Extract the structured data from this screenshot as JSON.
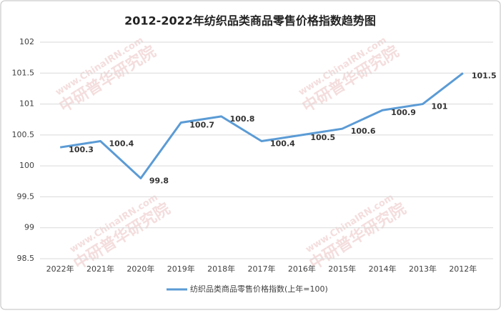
{
  "chart_data": {
    "type": "line",
    "title": "2012-2022年纺织品类商品零售价格指数趋势图",
    "categories": [
      "2022年",
      "2021年",
      "2020年",
      "2019年",
      "2018年",
      "2017年",
      "2016年",
      "2015年",
      "2014年",
      "2013年",
      "2012年"
    ],
    "series": [
      {
        "name": "纺织品类商品零售价格指数(上年=100)",
        "color": "#5b9bd5",
        "values": [
          100.3,
          100.4,
          99.8,
          100.7,
          100.8,
          100.4,
          100.5,
          100.6,
          100.9,
          101,
          101.5
        ]
      }
    ],
    "ylim": [
      98.5,
      102
    ],
    "yticks": [
      98.5,
      99,
      99.5,
      100,
      100.5,
      101,
      101.5,
      102
    ],
    "grid": true,
    "legend": "bottom",
    "watermark": [
      "www.ChinaIRN.com",
      "中研普华研究院"
    ]
  }
}
